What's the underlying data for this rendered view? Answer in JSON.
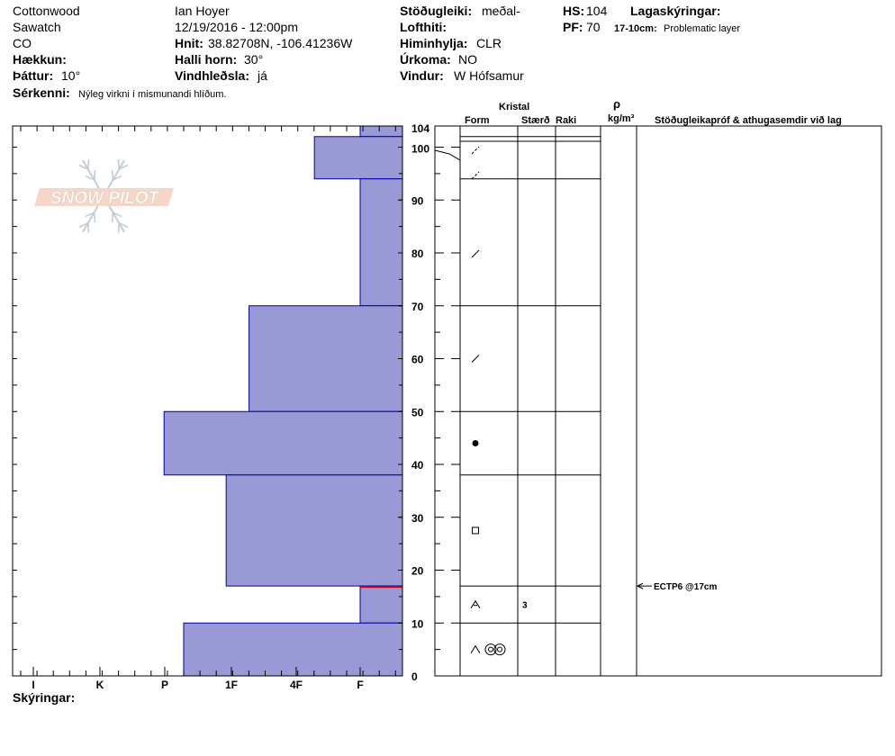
{
  "header": {
    "location": "Cottonwood",
    "range": "Sawatch",
    "state": "CO",
    "elevation_label": "Hækkun:",
    "aspect_label": "Þáttur:",
    "aspect_value": "10°",
    "observer": "Ian Hoyer",
    "datetime": "12/19/2016 - 12:00pm",
    "coords_label": "Hnit:",
    "coords_value": "38.82708N, -106.41236W",
    "slope_label": "Halli horn:",
    "slope_value": "30°",
    "wind_load_label": "Vindhleðsla:",
    "wind_load_value": "já",
    "stability_label": "Stöðugleiki:",
    "stability_value": "meðal-",
    "air_temp_label": "Lofthiti:",
    "sky_label": "Himinhylja:",
    "sky_value": "CLR",
    "precip_label": "Úrkoma:",
    "precip_value": "NO",
    "wind_label": "Vindur:",
    "wind_value": "W Hófsamur",
    "hs_label": "HS:",
    "hs_value": "104",
    "pf_label": "PF:",
    "pf_value": "70",
    "layer_notes_label": "Lagaskýringar:",
    "layer_note_range": "17-10cm:",
    "layer_note_text": "Problematic layer",
    "features_label": "Sérkenni:",
    "features_value": "Nýleg virkni í mismunandi hlíðum."
  },
  "table": {
    "crystal_label": "Kristal",
    "form_label": "Form",
    "size_label": "Stærð",
    "moisture_label": "Raki",
    "density_symbol": "ρ",
    "density_unit": "kg/m³",
    "tests_label": "Stöðugleikapróf & athugasemdir við lag",
    "size_values": [
      {
        "depth": 13.5,
        "text": "3"
      }
    ],
    "test_results": [
      {
        "depth": 17,
        "text": "ECTP6 @17cm"
      }
    ]
  },
  "footer": {
    "legend_label": "Skýringar:"
  },
  "logo": {
    "text": "SNOW PILOT"
  },
  "chart_data": {
    "type": "bar",
    "orientation": "horizontal",
    "title": "",
    "xlabel": "",
    "ylabel": "",
    "hardness_scale": [
      "I",
      "K",
      "P",
      "1F",
      "4F",
      "F"
    ],
    "ylim": [
      0,
      104
    ],
    "yticks": [
      0,
      10,
      20,
      30,
      40,
      50,
      60,
      70,
      80,
      90,
      100,
      104
    ],
    "grid": false,
    "colors": {
      "fill": "#9999d6",
      "stroke": "#0000a0",
      "highlight": "#cc0000"
    },
    "layers": [
      {
        "bottom": 102,
        "top": 104,
        "hardness_pos": 6.0,
        "form": "precip-particles",
        "grain_size": null
      },
      {
        "bottom": 94,
        "top": 102,
        "hardness_pos": 5.3,
        "form": "precip-particles",
        "grain_size": null
      },
      {
        "bottom": 70,
        "top": 94,
        "hardness_pos": 6.0,
        "form": "decomposing-fragments",
        "grain_size": null
      },
      {
        "bottom": 50,
        "top": 70,
        "hardness_pos": 4.3,
        "form": "decomposing-fragments",
        "grain_size": null
      },
      {
        "bottom": 38,
        "top": 50,
        "hardness_pos": 3.0,
        "form": "rounded-grains",
        "grain_size": null
      },
      {
        "bottom": 17,
        "top": 38,
        "hardness_pos": 3.95,
        "form": "faceted-crystals",
        "grain_size": null
      },
      {
        "bottom": 10,
        "top": 17,
        "hardness_pos": 6.0,
        "form": "depth-hoar",
        "grain_size": "3"
      },
      {
        "bottom": 0,
        "top": 10,
        "hardness_pos": 3.3,
        "form": "depth-hoar-with-melt-forms",
        "grain_size": null
      }
    ],
    "layer_boundaries": [
      104,
      102,
      94,
      70,
      50,
      38,
      17,
      10
    ],
    "problematic_layer": {
      "top": 17,
      "bottom": 10
    },
    "tests": [
      {
        "depth": 17,
        "result": "ECTP6 @17cm"
      }
    ]
  }
}
